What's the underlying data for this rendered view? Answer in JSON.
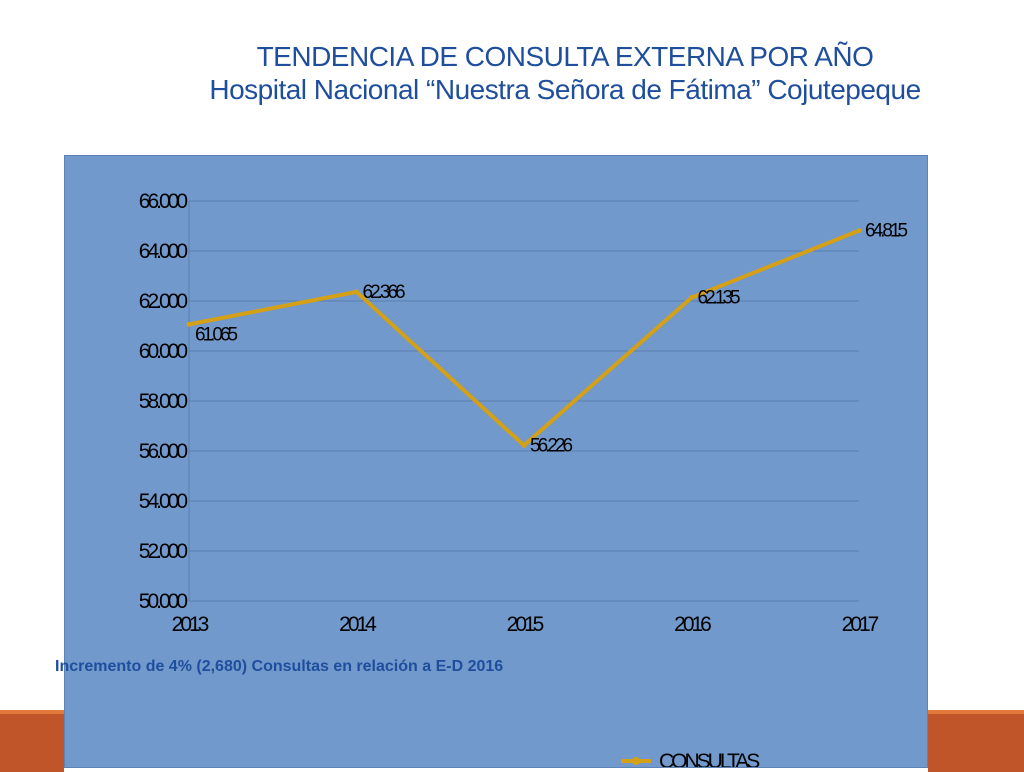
{
  "header": {
    "title": "TENDENCIA DE CONSULTA EXTERNA POR AÑO",
    "subtitle": "Hospital Nacional “Nuestra Señora de Fátima” Cojutepeque"
  },
  "note": "Incremento de 4% (2,680) Consultas en relación a E-D 2016",
  "colors": {
    "panel": "#7199cc",
    "line": "#d4a017",
    "title": "#1f4e9c",
    "grid": "#5a7fb0",
    "accent_bar": "#c0552a"
  },
  "chart_data": {
    "type": "line",
    "categories": [
      "2013",
      "2014",
      "2015",
      "2016",
      "2017"
    ],
    "series": [
      {
        "name": "CONSULTAS",
        "values": [
          61065,
          62366,
          56226,
          62135,
          64815
        ]
      }
    ],
    "data_labels": [
      "61.065",
      "62.366",
      "56.226",
      "62.135",
      "64.815"
    ],
    "y_ticks": [
      50000,
      52000,
      54000,
      56000,
      58000,
      60000,
      62000,
      64000,
      66000
    ],
    "y_tick_labels": [
      "50.000",
      "52.000",
      "54.000",
      "56.000",
      "58.000",
      "60.000",
      "62.000",
      "64.000",
      "66.000"
    ],
    "ylim": [
      50000,
      66000
    ],
    "grid": true,
    "legend": "bottom"
  }
}
